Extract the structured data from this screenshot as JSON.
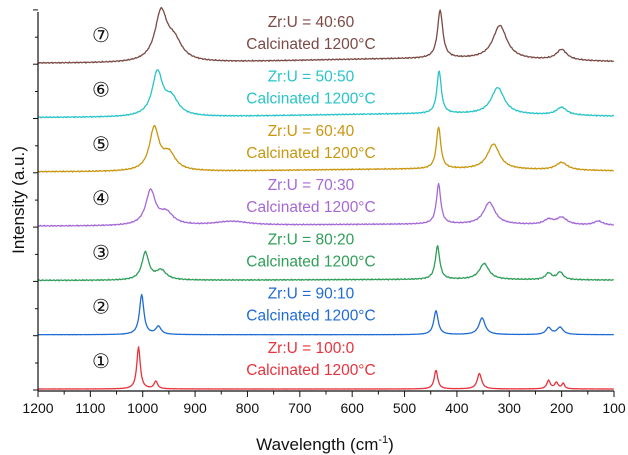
{
  "chart_data": {
    "type": "line",
    "title": "",
    "xlabel": "Wavelength (cm",
    "xlabel_sup": "-1",
    "xlabel_close": ")",
    "ylabel": "Intensity (a.u.)",
    "xlim": [
      1200,
      100
    ],
    "x_reversed": true,
    "x_ticks": [
      "1200",
      "1100",
      "1000",
      "900",
      "800",
      "700",
      "600",
      "500",
      "400",
      "300",
      "200",
      "100"
    ],
    "grid": false,
    "series": [
      {
        "marker": "①",
        "name_line1": "Zr:U = 100:0",
        "name_line2": "Calcinated 1200°C",
        "color": "#e8323c",
        "peaks": [
          [
            1008,
            1.0,
            4
          ],
          [
            975,
            0.18,
            4
          ],
          [
            440,
            0.45,
            4
          ],
          [
            357,
            0.37,
            5
          ],
          [
            225,
            0.2,
            4
          ],
          [
            210,
            0.15,
            4
          ],
          [
            197,
            0.13,
            3
          ]
        ]
      },
      {
        "marker": "②",
        "name_line1": "Zr:U = 90:10",
        "name_line2": "Calcinated 1200°C",
        "color": "#1f6bd4",
        "peaks": [
          [
            1002,
            1.0,
            5
          ],
          [
            970,
            0.2,
            6
          ],
          [
            440,
            0.6,
            5
          ],
          [
            352,
            0.42,
            7
          ],
          [
            225,
            0.17,
            6
          ],
          [
            203,
            0.18,
            7
          ]
        ]
      },
      {
        "marker": "③",
        "name_line1": "Zr:U = 80:20",
        "name_line2": "Calcinated 1200°C",
        "color": "#2e9e58",
        "peaks": [
          [
            995,
            0.72,
            8
          ],
          [
            965,
            0.25,
            12
          ],
          [
            437,
            0.88,
            5
          ],
          [
            348,
            0.42,
            11
          ],
          [
            225,
            0.17,
            7
          ],
          [
            203,
            0.2,
            7
          ]
        ]
      },
      {
        "marker": "④",
        "name_line1": "Zr:U = 70:30",
        "name_line2": "Calcinated 1200°C",
        "color": "#a469d6",
        "peaks": [
          [
            985,
            0.85,
            11
          ],
          [
            955,
            0.3,
            16
          ],
          [
            830,
            0.1,
            40
          ],
          [
            435,
            1.0,
            5
          ],
          [
            338,
            0.55,
            13
          ],
          [
            225,
            0.12,
            10
          ],
          [
            200,
            0.18,
            12
          ],
          [
            130,
            0.1,
            10
          ]
        ]
      },
      {
        "marker": "⑤",
        "name_line1": "Zr:U = 60:40",
        "name_line2": "Calcinated 1200°C",
        "color": "#c9960e",
        "peaks": [
          [
            978,
            1.0,
            11
          ],
          [
            950,
            0.4,
            15
          ],
          [
            435,
            1.0,
            5
          ],
          [
            330,
            0.6,
            14
          ],
          [
            200,
            0.18,
            13
          ]
        ]
      },
      {
        "marker": "⑥",
        "name_line1": "Zr:U = 50:50",
        "name_line2": "Calcinated 1200°C",
        "color": "#27c4c9",
        "peaks": [
          [
            972,
            1.0,
            12
          ],
          [
            945,
            0.4,
            16
          ],
          [
            434,
            1.0,
            5
          ],
          [
            322,
            0.62,
            15
          ],
          [
            200,
            0.18,
            12
          ]
        ]
      },
      {
        "marker": "⑦",
        "name_line1": "Zr:U = 40:60",
        "name_line2": "Calcinated 1200°C",
        "color": "#7a4a44",
        "peaks": [
          [
            965,
            1.0,
            14
          ],
          [
            940,
            0.4,
            18
          ],
          [
            432,
            1.0,
            6
          ],
          [
            318,
            0.7,
            16
          ],
          [
            200,
            0.22,
            12
          ]
        ]
      }
    ]
  }
}
